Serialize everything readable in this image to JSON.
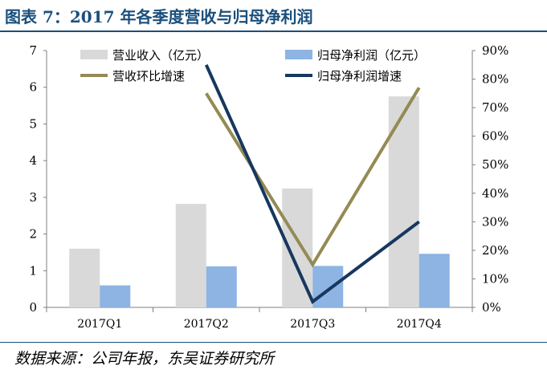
{
  "title": "图表 7：2017 年各季度营收与归母净利润",
  "source": "数据来源：公司年报，东吴证券研究所",
  "colors": {
    "revenue_bar": "#d9d9d9",
    "profit_bar": "#8db4e2",
    "revenue_growth_line": "#948a54",
    "profit_growth_line": "#17375e",
    "title": "#1a4f7c"
  },
  "chart_data": {
    "type": "bar",
    "categories": [
      "2017Q1",
      "2017Q2",
      "2017Q3",
      "2017Q4"
    ],
    "series": [
      {
        "name": "营业收入（亿元）",
        "type": "bar",
        "axis": "left",
        "values": [
          1.6,
          2.82,
          3.24,
          5.75
        ]
      },
      {
        "name": "归母净利润（亿元）",
        "type": "bar",
        "axis": "left",
        "values": [
          0.6,
          1.12,
          1.13,
          1.46
        ]
      },
      {
        "name": "营收环比增速",
        "type": "line",
        "axis": "right",
        "values": [
          null,
          75,
          15,
          77
        ]
      },
      {
        "name": "归母净利润增速",
        "type": "line",
        "axis": "right",
        "values": [
          null,
          85,
          2,
          30
        ]
      }
    ],
    "y_left": {
      "min": 0,
      "max": 7,
      "ticks": [
        "0",
        "1",
        "2",
        "3",
        "4",
        "5",
        "6",
        "7"
      ]
    },
    "y_right": {
      "min": 0,
      "max": 90,
      "ticks": [
        "0%",
        "10%",
        "20%",
        "30%",
        "40%",
        "50%",
        "60%",
        "70%",
        "80%",
        "90%"
      ]
    },
    "grid": false,
    "legend": "top"
  }
}
